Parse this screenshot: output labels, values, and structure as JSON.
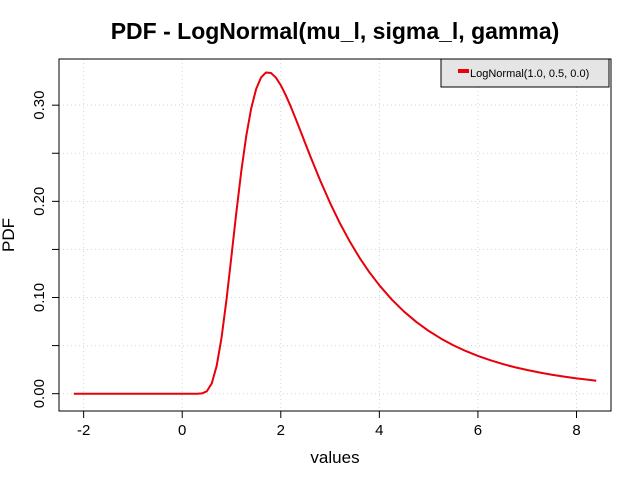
{
  "chart_data": {
    "type": "line",
    "title": "PDF - LogNormal(mu_l, sigma_l, gamma)",
    "xlabel": "values",
    "ylabel": "PDF",
    "xlim": [
      -2.5,
      8.7
    ],
    "ylim": [
      -0.018,
      0.348
    ],
    "x_ticks": [
      -2,
      0,
      2,
      4,
      6,
      8
    ],
    "x_tick_labels": [
      "-2",
      "0",
      "2",
      "4",
      "6",
      "8"
    ],
    "y_ticks": [
      0.0,
      0.1,
      0.2,
      0.3
    ],
    "y_tick_labels": [
      "0.00",
      "0.10",
      "0.20",
      "0.30"
    ],
    "grid": true,
    "legend_position": "top-right",
    "colors": {
      "series": "#e8000b",
      "grid": "#d3d3d3",
      "legend_bg": "#e5e5e5"
    },
    "series": [
      {
        "name": "LogNormal(1.0, 0.5, 0.0)",
        "color": "#e8000b",
        "x": [
          -2.2,
          -1.5,
          -1.0,
          -0.5,
          0.0,
          0.2,
          0.3,
          0.4,
          0.5,
          0.6,
          0.7,
          0.8,
          0.9,
          1.0,
          1.1,
          1.2,
          1.3,
          1.4,
          1.5,
          1.6,
          1.7,
          1.8,
          1.9,
          2.0,
          2.1,
          2.2,
          2.3,
          2.4,
          2.5,
          2.6,
          2.8,
          3.0,
          3.2,
          3.4,
          3.6,
          3.8,
          4.0,
          4.25,
          4.5,
          4.75,
          5.0,
          5.25,
          5.5,
          5.75,
          6.0,
          6.25,
          6.5,
          6.75,
          7.0,
          7.25,
          7.5,
          7.75,
          8.0,
          8.2,
          8.4
        ],
        "y": [
          0.0,
          0.0,
          0.0,
          0.0,
          0.0,
          0.0,
          0.0,
          0.0003,
          0.0025,
          0.0108,
          0.0291,
          0.0589,
          0.0984,
          0.1435,
          0.1893,
          0.2319,
          0.2682,
          0.2967,
          0.3168,
          0.3288,
          0.334,
          0.3335,
          0.3287,
          0.3207,
          0.3105,
          0.2988,
          0.2862,
          0.2731,
          0.2599,
          0.2468,
          0.2217,
          0.1984,
          0.1772,
          0.1582,
          0.1412,
          0.1261,
          0.1127,
          0.098,
          0.0854,
          0.0746,
          0.0653,
          0.0573,
          0.0504,
          0.0444,
          0.0393,
          0.0348,
          0.0309,
          0.0275,
          0.0246,
          0.022,
          0.0197,
          0.0177,
          0.0159,
          0.0147,
          0.0135
        ]
      }
    ]
  }
}
